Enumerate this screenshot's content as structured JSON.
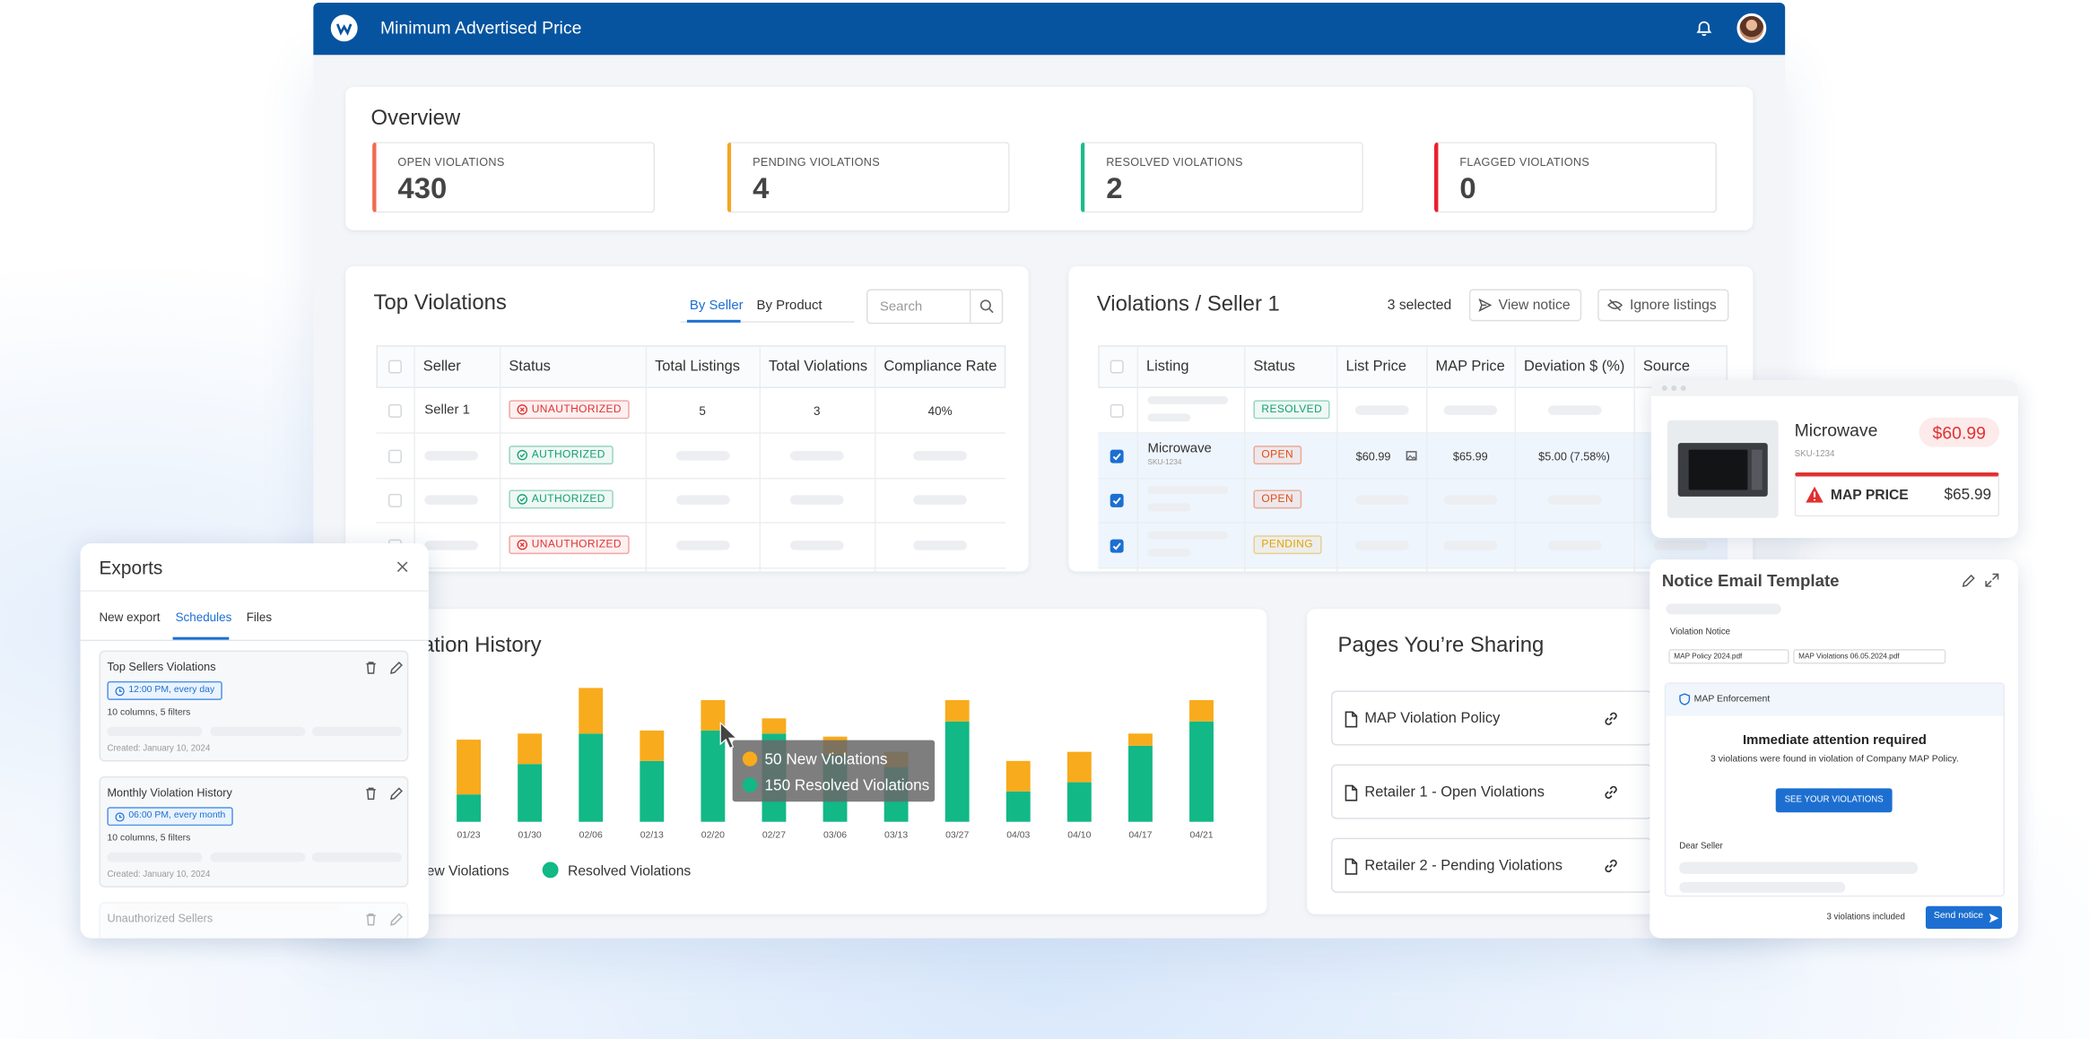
{
  "header": {
    "title": "Minimum Advertised Price"
  },
  "overview": {
    "title": "Overview",
    "stats": [
      {
        "label": "OPEN VIOLATIONS",
        "value": 430,
        "color": "#f26b4f"
      },
      {
        "label": "PENDING VIOLATIONS",
        "value": 4,
        "color": "#f5a623"
      },
      {
        "label": "RESOLVED VIOLATIONS",
        "value": 2,
        "color": "#1abc8c"
      },
      {
        "label": "FLAGGED VIOLATIONS",
        "value": 0,
        "color": "#e8202f"
      }
    ]
  },
  "top_violations": {
    "title": "Top Violations",
    "tabs": [
      "By Seller",
      "By Product"
    ],
    "search": "Search",
    "columns": [
      "Seller",
      "Status",
      "Total Listings",
      "Total Violations",
      "Compliance Rate"
    ],
    "rows": [
      {
        "seller": "Seller 1",
        "status": "UNAUTHORIZED",
        "color": "#e03131",
        "total_listings": 5,
        "total_violations": 3,
        "compliance_rate": "40%"
      },
      {
        "status": "AUTHORIZED",
        "color": "#12a070"
      },
      {
        "status": "AUTHORIZED",
        "color": "#12a070"
      },
      {
        "status": "UNAUTHORIZED",
        "color": "#e03131"
      }
    ]
  },
  "seller_violations": {
    "title": "Violations / Seller 1",
    "selected": "3 selected",
    "buttons": [
      "View notice",
      "Ignore listings"
    ],
    "columns": [
      "Listing",
      "Status",
      "List Price",
      "MAP Price",
      "Deviation $ (%)",
      "Source"
    ],
    "rows": [
      {
        "status": "RESOLVED",
        "color": "#12a070",
        "checked": false
      },
      {
        "listing": "Microwave",
        "sku": "SKU-1234",
        "status": "OPEN",
        "color": "#e8490c",
        "checked": true,
        "list_price": "$60.99",
        "map_price": "$65.99",
        "deviation": "$5.00 (7.58%)"
      },
      {
        "status": "OPEN",
        "color": "#e8490c",
        "checked": true
      },
      {
        "status": "PENDING",
        "color": "#e5a100",
        "checked": true
      }
    ]
  },
  "chart_data": {
    "type": "bar",
    "stacked": true,
    "title": "Violation History",
    "categories": [
      "01/23",
      "01/30",
      "02/06",
      "02/13",
      "02/20",
      "02/27",
      "03/06",
      "03/13",
      "03/27",
      "04/03",
      "04/10",
      "04/17",
      "04/21"
    ],
    "series": [
      {
        "name": "New Violations",
        "color": "#f8ab1c",
        "values": [
          90,
          50,
          75,
          50,
          50,
          25,
          30,
          25,
          35,
          50,
          50,
          20,
          35
        ]
      },
      {
        "name": "Resolved Violations",
        "color": "#12b886",
        "values": [
          45,
          95,
          145,
          100,
          150,
          145,
          110,
          90,
          165,
          50,
          65,
          125,
          165
        ]
      }
    ],
    "tooltip": [
      "50 New Violations",
      "150 Resolved Violations"
    ]
  },
  "pages": {
    "title": "Pages You’re Sharing",
    "items": [
      "MAP Violation Policy",
      "Retailer 1 - Open Violations",
      "Retailer 2 - Pending Violations"
    ]
  },
  "exports": {
    "title": "Exports",
    "tabs": [
      "New export",
      "Schedules",
      "Files"
    ],
    "active_tab": 1,
    "items": [
      {
        "name": "Top Sellers Violations",
        "schedule": "12:00 PM, every day",
        "details": "10 columns, 5 filters",
        "created": "Created: January 10, 2024"
      },
      {
        "name": "Monthly Violation History",
        "schedule": "06:00 PM, every month",
        "details": "10 columns, 5 filters",
        "created": "Created: January 10, 2024"
      },
      {
        "name": "Unauthorized Sellers"
      }
    ]
  },
  "product": {
    "name": "Microwave",
    "sku": "SKU-1234",
    "price": "$60.99",
    "map_label": "MAP PRICE",
    "map_price": "$65.99"
  },
  "notice": {
    "title": "Notice Email Template",
    "subject": "Violation Notice",
    "attachments": [
      "MAP Policy 2024.pdf",
      "MAP Violations 06.05.2024.pdf"
    ],
    "section": "MAP Enforcement",
    "heading": "Immediate attention required",
    "body": "3 violations were found in violation of Company MAP Policy.",
    "cta": "SEE YOUR VIOLATIONS",
    "greeting": "Dear Seller",
    "count": "3 violations included",
    "send": "Send notice"
  }
}
